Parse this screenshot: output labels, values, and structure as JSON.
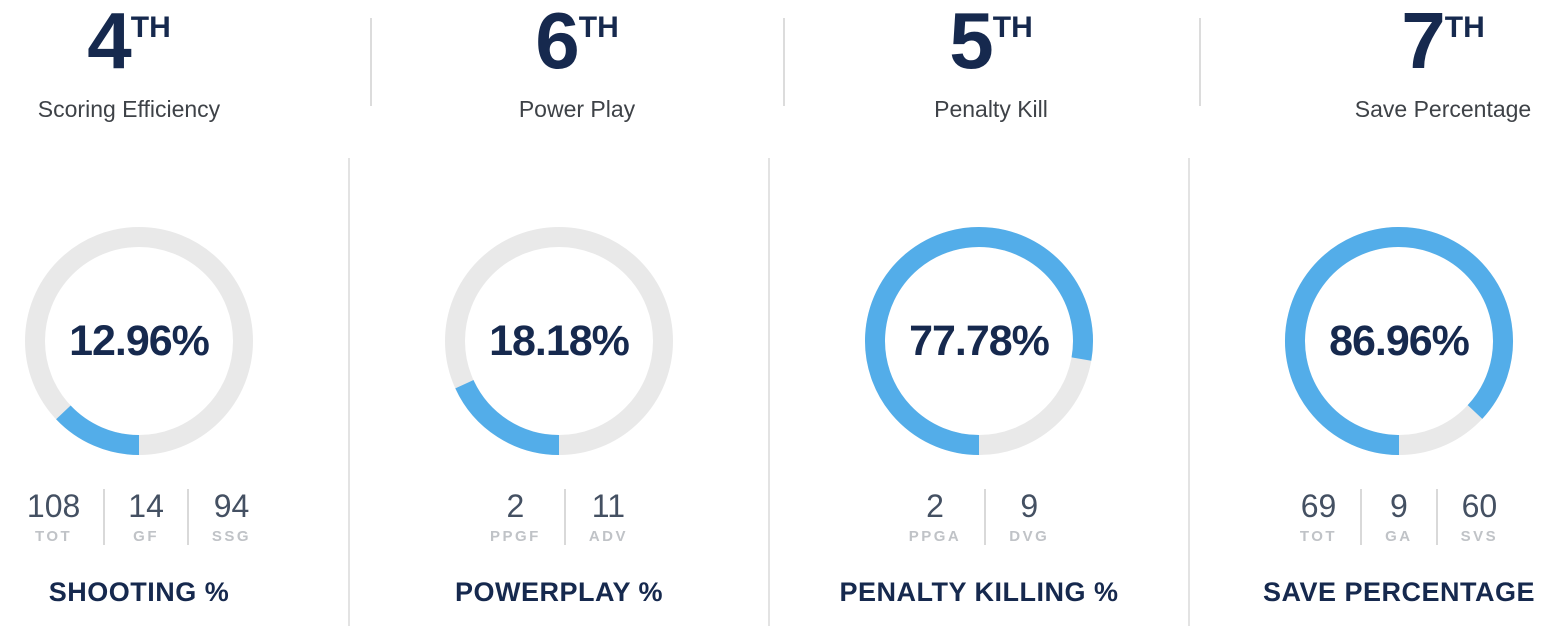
{
  "colors": {
    "navy": "#16294e",
    "blue": "#53ade9",
    "track_gray": "#e9e9e9",
    "subtitle_gray": "#3e4247",
    "stat_value_gray": "#445062",
    "stat_label_gray": "#c0c3c7",
    "divider_gray": "#dcdcdc"
  },
  "columns": [
    {
      "rank": "4",
      "rank_suffix": "TH",
      "rank_title": "Scoring Efficiency",
      "percent": 12.96,
      "percent_label": "12.96%",
      "metric_label": "SHOOTING %",
      "stats": [
        {
          "value": "108",
          "label": "TOT"
        },
        {
          "value": "14",
          "label": "GF"
        },
        {
          "value": "94",
          "label": "SSG"
        }
      ]
    },
    {
      "rank": "6",
      "rank_suffix": "TH",
      "rank_title": "Power Play",
      "percent": 18.18,
      "percent_label": "18.18%",
      "metric_label": "POWERPLAY %",
      "stats": [
        {
          "value": "2",
          "label": "PPGF"
        },
        {
          "value": "11",
          "label": "ADV"
        }
      ]
    },
    {
      "rank": "5",
      "rank_suffix": "TH",
      "rank_title": "Penalty Kill",
      "percent": 77.78,
      "percent_label": "77.78%",
      "metric_label": "PENALTY KILLING %",
      "stats": [
        {
          "value": "2",
          "label": "PPGA"
        },
        {
          "value": "9",
          "label": "DVG"
        }
      ]
    },
    {
      "rank": "7",
      "rank_suffix": "TH",
      "rank_title": "Save Percentage",
      "percent": 86.96,
      "percent_label": "86.96%",
      "metric_label": "SAVE PERCENTAGE",
      "stats": [
        {
          "value": "69",
          "label": "TOT"
        },
        {
          "value": "9",
          "label": "GA"
        },
        {
          "value": "60",
          "label": "SVS"
        }
      ]
    }
  ],
  "chart_data": [
    {
      "type": "pie",
      "variant": "donut",
      "title": "Scoring Efficiency",
      "rank": "4TH",
      "metric": "SHOOTING %",
      "value_pct": 12.96,
      "segments": [
        {
          "label": "shooting %",
          "value": 12.96,
          "color": "#53ade9"
        },
        {
          "label": "remainder",
          "value": 87.04,
          "color": "#e9e9e9"
        }
      ],
      "stats": {
        "TOT": 108,
        "GF": 14,
        "SSG": 94
      },
      "arc_start": "6-o'clock",
      "arc_direction": "clockwise"
    },
    {
      "type": "pie",
      "variant": "donut",
      "title": "Power Play",
      "rank": "6TH",
      "metric": "POWERPLAY %",
      "value_pct": 18.18,
      "segments": [
        {
          "label": "powerplay %",
          "value": 18.18,
          "color": "#53ade9"
        },
        {
          "label": "remainder",
          "value": 81.82,
          "color": "#e9e9e9"
        }
      ],
      "stats": {
        "PPGF": 2,
        "ADV": 11
      },
      "arc_start": "6-o'clock",
      "arc_direction": "clockwise"
    },
    {
      "type": "pie",
      "variant": "donut",
      "title": "Penalty Kill",
      "rank": "5TH",
      "metric": "PENALTY KILLING %",
      "value_pct": 77.78,
      "segments": [
        {
          "label": "penalty killing %",
          "value": 77.78,
          "color": "#53ade9"
        },
        {
          "label": "remainder",
          "value": 22.22,
          "color": "#e9e9e9"
        }
      ],
      "stats": {
        "PPGA": 2,
        "DVG": 9
      },
      "arc_start": "6-o'clock",
      "arc_direction": "clockwise"
    },
    {
      "type": "pie",
      "variant": "donut",
      "title": "Save Percentage",
      "rank": "7TH",
      "metric": "SAVE PERCENTAGE",
      "value_pct": 86.96,
      "segments": [
        {
          "label": "save percentage",
          "value": 86.96,
          "color": "#53ade9"
        },
        {
          "label": "remainder",
          "value": 13.04,
          "color": "#e9e9e9"
        }
      ],
      "stats": {
        "TOT": 69,
        "GA": 9,
        "SVS": 60
      },
      "arc_start": "6-o'clock",
      "arc_direction": "clockwise"
    }
  ]
}
